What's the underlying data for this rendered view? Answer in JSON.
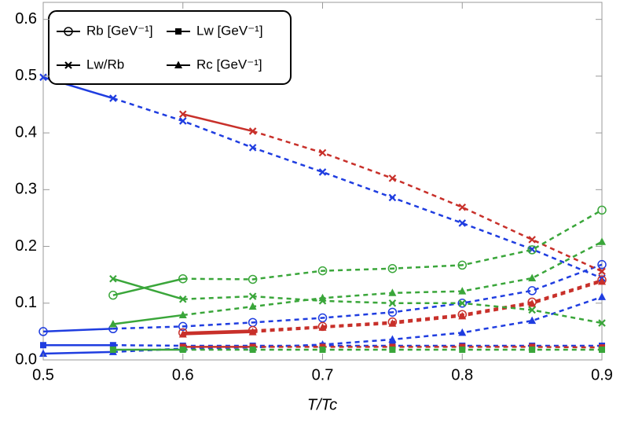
{
  "chart_data": {
    "type": "line",
    "x_label": "T/Tc",
    "x": [
      0.5,
      0.55,
      0.6,
      0.65,
      0.7,
      0.75,
      0.8,
      0.85,
      0.9
    ],
    "xlim": [
      0.5,
      0.9
    ],
    "xticks": [
      0.5,
      0.6,
      0.7,
      0.8,
      0.9
    ],
    "ylim": [
      0,
      0.63
    ],
    "yticks": [
      {
        "value": 0,
        "label": "0.0"
      },
      0.1,
      0.2,
      0.3,
      0.4,
      0.5,
      0.6
    ],
    "legend_position": "upper left",
    "legend": [
      {
        "name": "Rb [GeV⁻¹]",
        "marker": "circle"
      },
      {
        "name": "Lw [GeV⁻¹]",
        "marker": "square"
      },
      {
        "name": "Lw/Rb",
        "marker": "cross"
      },
      {
        "name": "Rc [GeV⁻¹]",
        "marker": "triangle"
      }
    ],
    "series": [
      {
        "marker": "cross",
        "color": "#1f3de0",
        "dashed_from": 0.55,
        "values": [
          0.498,
          0.461,
          0.421,
          0.374,
          0.331,
          0.286,
          0.241,
          0.195,
          0.144
        ]
      },
      {
        "marker": "circle",
        "color": "#1f3de0",
        "dashed_from": 0.55,
        "values": [
          0.05,
          0.055,
          0.059,
          0.066,
          0.074,
          0.084,
          0.1,
          0.122,
          0.168
        ]
      },
      {
        "marker": "square",
        "color": "#1f3de0",
        "dashed_from": 0.55,
        "values": [
          0.026,
          0.026,
          0.025,
          0.025,
          0.025,
          0.025,
          0.025,
          0.025,
          0.025
        ]
      },
      {
        "marker": "triangle",
        "color": "#1f3de0",
        "dashed_from": 0.55,
        "values": [
          0.011,
          0.014,
          0.02,
          0.022,
          0.027,
          0.036,
          0.048,
          0.069,
          0.111
        ]
      },
      {
        "marker": "cross",
        "color": "#c8302a",
        "dashed_from": 0.65,
        "values": [
          null,
          null,
          0.433,
          0.403,
          0.365,
          0.32,
          0.269,
          0.212,
          0.156
        ]
      },
      {
        "marker": "circle",
        "color": "#c8302a",
        "dashed_from": 0.65,
        "values": [
          null,
          null,
          0.048,
          0.052,
          0.059,
          0.067,
          0.08,
          0.102,
          0.141
        ]
      },
      {
        "marker": "square",
        "color": "#c8302a",
        "dashed_from": 0.65,
        "values": [
          null,
          null,
          0.023,
          0.023,
          0.023,
          0.023,
          0.023,
          0.023,
          0.022
        ]
      },
      {
        "marker": "triangle",
        "color": "#c8302a",
        "dashed_from": 0.65,
        "values": [
          null,
          null,
          0.045,
          0.049,
          0.057,
          0.064,
          0.077,
          0.099,
          0.138
        ]
      },
      {
        "marker": "cross",
        "color": "#3aa63a",
        "dashed_from": 0.6,
        "values": [
          null,
          0.143,
          0.107,
          0.112,
          0.104,
          0.1,
          0.1,
          0.088,
          0.065
        ]
      },
      {
        "marker": "circle",
        "color": "#3aa63a",
        "dashed_from": 0.6,
        "values": [
          null,
          0.114,
          0.143,
          0.142,
          0.157,
          0.161,
          0.167,
          0.194,
          0.264
        ]
      },
      {
        "marker": "square",
        "color": "#3aa63a",
        "dashed_from": 0.6,
        "values": [
          null,
          0.018,
          0.018,
          0.018,
          0.018,
          0.018,
          0.018,
          0.018,
          0.018
        ]
      },
      {
        "marker": "triangle",
        "color": "#3aa63a",
        "dashed_from": 0.6,
        "values": [
          null,
          0.063,
          0.079,
          0.094,
          0.109,
          0.118,
          0.121,
          0.144,
          0.208
        ]
      }
    ]
  }
}
